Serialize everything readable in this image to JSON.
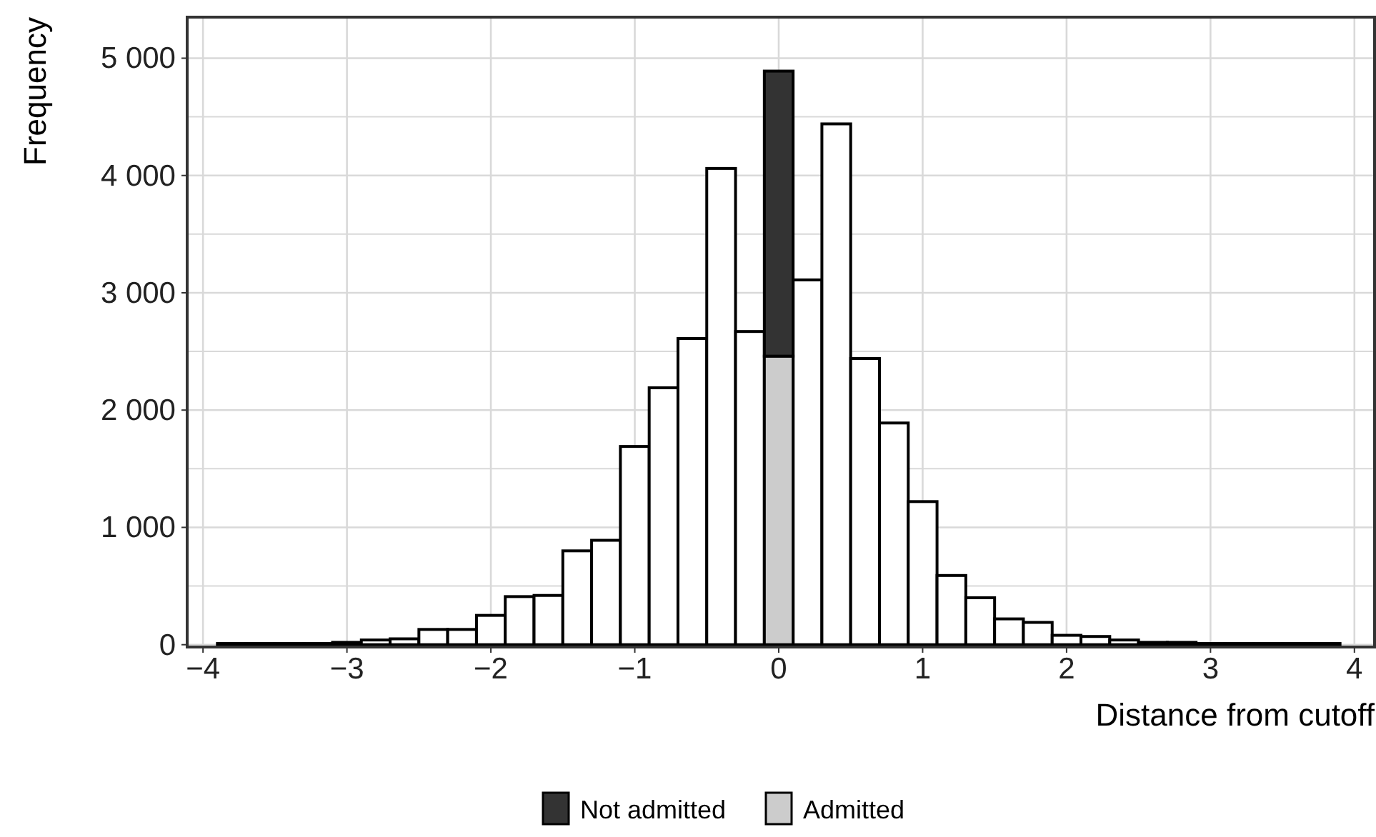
{
  "chart_data": {
    "type": "bar",
    "xlabel": "Distance from cutoff",
    "ylabel": "Frequency",
    "x": [
      -3.8,
      -3.6,
      -3.4,
      -3.2,
      -3,
      -2.8,
      -2.6,
      -2.4,
      -2.2,
      -2,
      -1.8,
      -1.6,
      -1.4,
      -1.2,
      -1,
      -0.8,
      -0.6,
      -0.4,
      -0.2,
      0,
      0.2,
      0.4,
      0.6,
      0.8,
      1,
      1.2,
      1.4,
      1.6,
      1.8,
      2,
      2.2,
      2.4,
      2.6,
      2.8,
      3,
      3.2,
      3.4,
      3.6,
      3.8
    ],
    "stacked": true,
    "series": [
      {
        "color": "#ffffff",
        "values": [
          10,
          10,
          10,
          10,
          20,
          40,
          50,
          130,
          130,
          250,
          410,
          420,
          800,
          890,
          1690,
          2190,
          2610,
          4060,
          2670,
          null,
          3110,
          4440,
          2440,
          1890,
          1220,
          590,
          400,
          220,
          190,
          80,
          70,
          40,
          20,
          20,
          10,
          10,
          10,
          10,
          10
        ]
      },
      {
        "name": "Admitted",
        "color": "#cccccc",
        "values": [
          null,
          null,
          null,
          null,
          null,
          null,
          null,
          null,
          null,
          null,
          null,
          null,
          null,
          null,
          null,
          null,
          null,
          null,
          null,
          2460,
          null,
          null,
          null,
          null,
          null,
          null,
          null,
          null,
          null,
          null,
          null,
          null,
          null,
          null,
          null,
          null,
          null,
          null,
          null
        ]
      },
      {
        "name": "Not admitted",
        "color": "#333333",
        "values": [
          null,
          null,
          null,
          null,
          null,
          null,
          null,
          null,
          null,
          null,
          null,
          null,
          null,
          null,
          null,
          null,
          null,
          null,
          null,
          2430,
          null,
          null,
          null,
          null,
          null,
          null,
          null,
          null,
          null,
          null,
          null,
          null,
          null,
          null,
          null,
          null,
          null,
          null,
          null
        ]
      }
    ],
    "xlim": [
      -4.11,
      4.14
    ],
    "xticks": [
      {
        "value": -4,
        "label": "−4"
      },
      {
        "value": -3,
        "label": "−3"
      },
      {
        "value": -2,
        "label": "−2"
      },
      {
        "value": -1,
        "label": "−1"
      },
      0,
      1,
      2,
      3,
      4
    ],
    "ylim": [
      -20,
      5350
    ],
    "yticks": [
      0,
      {
        "value": 500,
        "label": null
      },
      {
        "value": 1000,
        "label": "1 000"
      },
      {
        "value": 1500,
        "label": null
      },
      {
        "value": 2000,
        "label": "2 000"
      },
      {
        "value": 2500,
        "label": null
      },
      {
        "value": 3000,
        "label": "3 000"
      },
      {
        "value": 3500,
        "label": null
      },
      {
        "value": 4000,
        "label": "4 000"
      },
      {
        "value": 4500,
        "label": null
      },
      {
        "value": 5000,
        "label": "5 000"
      }
    ],
    "grid": true,
    "legend": "bottom"
  }
}
